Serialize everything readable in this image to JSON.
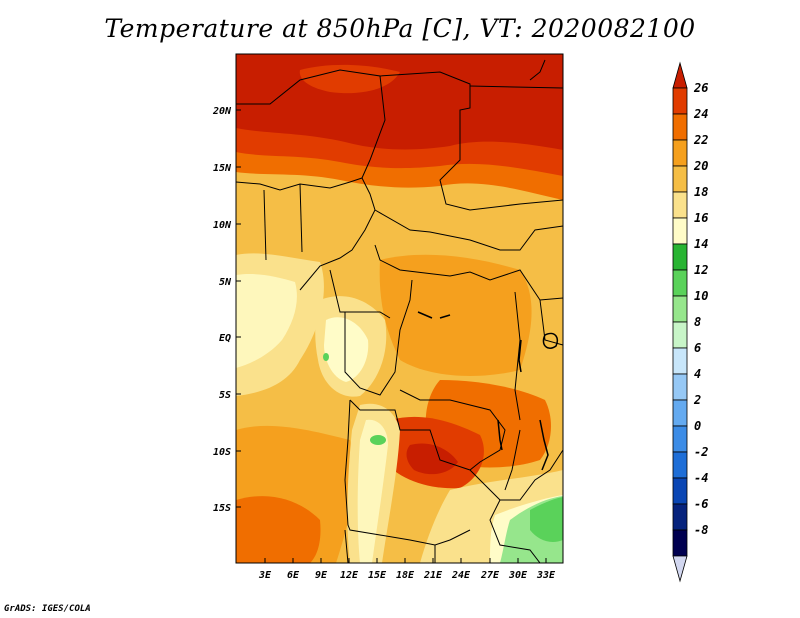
{
  "title": "Temperature at 850hPa [C], VT: 2020082100",
  "credit": "GrADS: IGES/COLA",
  "map": {
    "lat_labels": [
      "20N",
      "15N",
      "10N",
      "5N",
      "EQ",
      "5S",
      "10S",
      "15S"
    ],
    "lon_labels": [
      "3E",
      "6E",
      "9E",
      "12E",
      "15E",
      "18E",
      "21E",
      "24E",
      "27E",
      "30E",
      "33E"
    ]
  },
  "colorbar": {
    "labels": [
      "26",
      "24",
      "22",
      "20",
      "18",
      "16",
      "14",
      "12",
      "10",
      "8",
      "6",
      "4",
      "2",
      "0",
      "-2",
      "-4",
      "-6",
      "-8"
    ],
    "colors": [
      "#c81e00",
      "#e13c00",
      "#f06e00",
      "#f5a01e",
      "#f5be46",
      "#fae18c",
      "#fffcc8",
      "#28b432",
      "#5ad25a",
      "#96e68c",
      "#c8f5c8",
      "#c8e6fa",
      "#96c8f5",
      "#64aaf0",
      "#3c8ce6",
      "#1e6ed7",
      "#0a46b4",
      "#06237d",
      "#000050",
      "#d2d7f0"
    ]
  }
}
